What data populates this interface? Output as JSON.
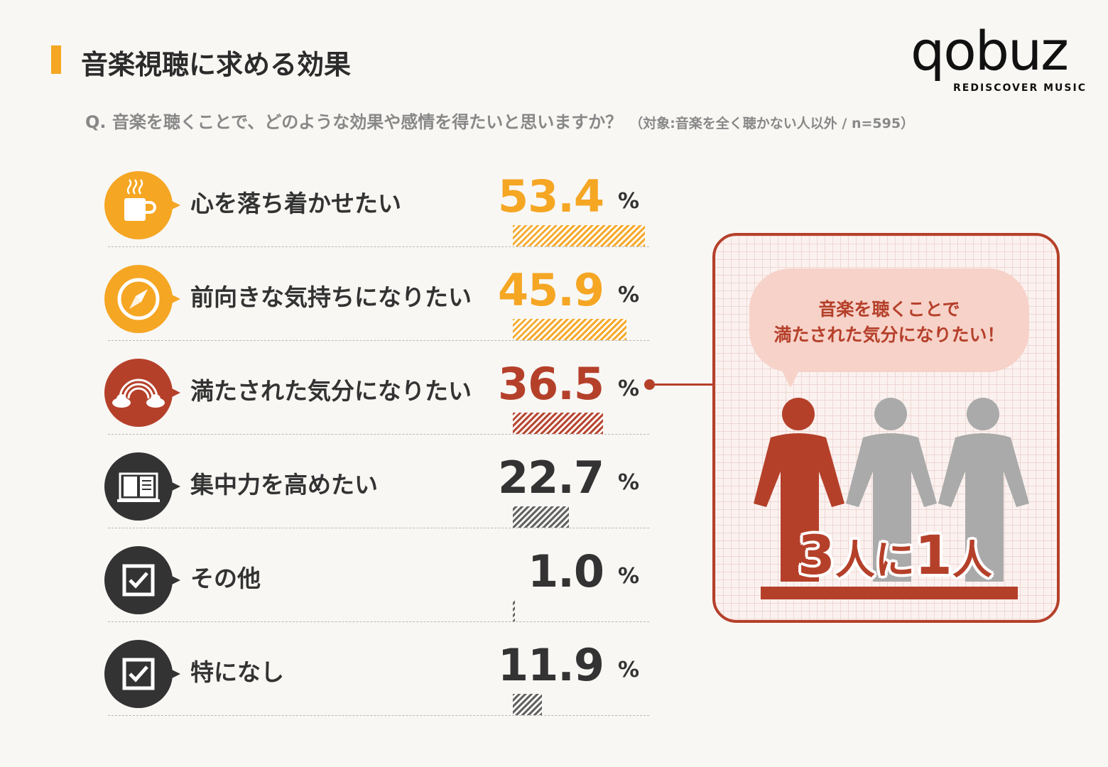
{
  "header": {
    "title": "音楽視聴に求める効果",
    "question": "Q.  音楽を聴くことで、どのような効果や感情を得たいと思いますか？",
    "question_note": "（対象:音楽を全く聴かない人以外 / n=595）"
  },
  "logo": {
    "wordmark": "qobuz",
    "tagline": "REDISCOVER MUSIC"
  },
  "colors": {
    "accent_orange": "#f5a623",
    "accent_red": "#b5402a",
    "dark": "#333333",
    "gray_figure": "#aaaaaa"
  },
  "chart_data": {
    "type": "bar",
    "categories": [
      "心を落ち着かせたい",
      "前向きな気持ちになりたい",
      "満たされた気分になりたい",
      "集中力を高めたい",
      "その他",
      "特になし"
    ],
    "values": [
      53.4,
      45.9,
      36.5,
      22.7,
      1.0,
      11.9
    ],
    "value_labels": [
      "53.4",
      "45.9",
      "36.5",
      "22.7",
      "1.0",
      "11.9"
    ],
    "unit": "%",
    "icons": [
      "coffee-cup-icon",
      "compass-icon",
      "rainbow-cloud-icon",
      "book-icon",
      "checkbox-icon",
      "checkbox-icon"
    ],
    "row_colors": [
      "#f5a623",
      "#f5a623",
      "#b5402a",
      "#333333",
      "#333333",
      "#333333"
    ],
    "xlim": [
      0,
      100
    ]
  },
  "callout": {
    "bubble_line1": "音楽を聴くことで",
    "bubble_line2": "満たされた気分になりたい！",
    "stat_num1": "3",
    "stat_word1": "人に",
    "stat_num2": "1",
    "stat_word2": "人"
  }
}
